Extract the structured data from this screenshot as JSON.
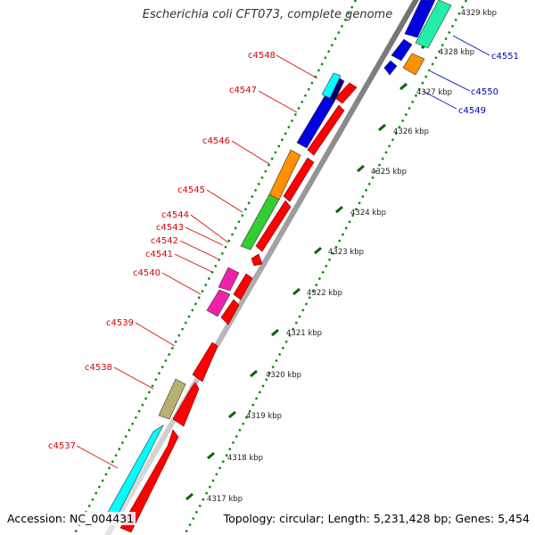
{
  "title": "Escherichia coli CFT073, complete genome",
  "footer": {
    "accession": "Accession: NC_004431",
    "topology": "Topology: circular; Length: 5,231,428 bp; Genes: 5,454"
  },
  "colors": {
    "gene_label_left": "#d40000",
    "gene_label_right": "#0000b4",
    "feature_red": "#ff0000",
    "feature_blue": "#0000e0",
    "feature_navy": "#000070",
    "feature_cyan": "#00ffff",
    "feature_orange": "#ff9000",
    "feature_green": "#33cc33",
    "feature_magenta": "#ee22aa",
    "feature_khaki": "#b8b070",
    "feature_teal": "#22eeaa",
    "tick_green": "#006600",
    "backbone": "#999999"
  },
  "kbp_labels": [
    "4317 kbp",
    "4318 kbp",
    "4319 kbp",
    "4320 kbp",
    "4321 kbp",
    "4322 kbp",
    "4323 kbp",
    "4324 kbp",
    "4325 kbp",
    "4326 kbp",
    "4327 kbp",
    "4328 kbp",
    "4329 kbp"
  ],
  "left_labels": [
    "c4548",
    "c4547",
    "c4546",
    "c4545",
    "c4544",
    "c4543",
    "c4542",
    "c4541",
    "c4540",
    "c4539",
    "c4538",
    "c4537"
  ],
  "right_labels": [
    "c4551",
    "c4550",
    "c4549"
  ]
}
